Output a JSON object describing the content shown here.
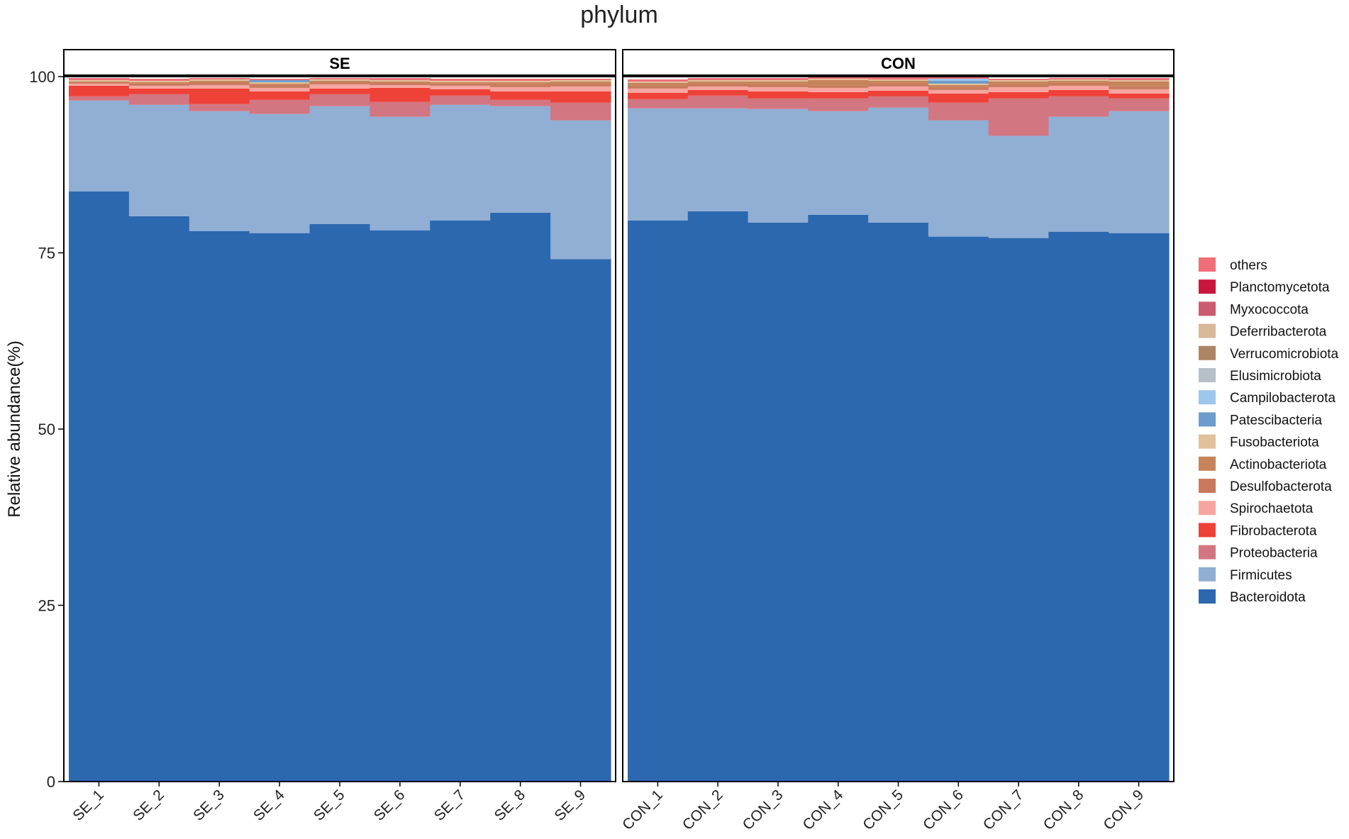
{
  "chart_data": {
    "type": "stacked-bar",
    "title": "phylum",
    "ylabel": "Relative abundance(%)",
    "xlabel": "",
    "ylim": [
      0,
      100
    ],
    "yticks": [
      0,
      25,
      50,
      75,
      100
    ],
    "grid": false,
    "legend_position": "right",
    "series_order_bottom_to_top": [
      "Bacteroidota",
      "Firmicutes",
      "Proteobacteria",
      "Fibrobacterota",
      "Spirochaetota",
      "Desulfobacterota",
      "Actinobacteriota",
      "Fusobacteriota",
      "Patescibacteria",
      "Campilobacterota",
      "Elusimicrobiota",
      "Verrucomicrobiota",
      "Deferribacterota",
      "Myxococcota",
      "Planctomycetota",
      "others"
    ],
    "legend": [
      {
        "name": "others",
        "color": "#EF6F78"
      },
      {
        "name": "Planctomycetota",
        "color": "#C8163F"
      },
      {
        "name": "Myxococcota",
        "color": "#CB5B70"
      },
      {
        "name": "Deferribacterota",
        "color": "#D7B899"
      },
      {
        "name": "Verrucomicrobiota",
        "color": "#AD8464"
      },
      {
        "name": "Elusimicrobiota",
        "color": "#B6C0C8"
      },
      {
        "name": "Campilobacterota",
        "color": "#9DC6EC"
      },
      {
        "name": "Patescibacteria",
        "color": "#6D9BCC"
      },
      {
        "name": "Fusobacteriota",
        "color": "#E2C09B"
      },
      {
        "name": "Actinobacteriota",
        "color": "#C6845A"
      },
      {
        "name": "Desulfobacterota",
        "color": "#C97A5E"
      },
      {
        "name": "Spirochaetota",
        "color": "#F7A5A0"
      },
      {
        "name": "Fibrobacterota",
        "color": "#EE4138"
      },
      {
        "name": "Proteobacteria",
        "color": "#D27682"
      },
      {
        "name": "Firmicutes",
        "color": "#91AED4"
      },
      {
        "name": "Bacteroidota",
        "color": "#2C68AF"
      }
    ],
    "panels": [
      {
        "label": "SE",
        "samples": [
          "SE_1",
          "SE_2",
          "SE_3",
          "SE_4",
          "SE_5",
          "SE_6",
          "SE_7",
          "SE_8",
          "SE_9"
        ],
        "stacks": [
          {
            "Bacteroidota": 83.7,
            "Firmicutes": 12.9,
            "Proteobacteria": 0.6,
            "Fibrobacterota": 1.5,
            "Spirochaetota": 0.3,
            "Desulfobacterota": 0.2,
            "Actinobacteriota": 0.1,
            "Fusobacteriota": 0.2,
            "others": 0.3
          },
          {
            "Bacteroidota": 80.2,
            "Firmicutes": 15.8,
            "Proteobacteria": 1.5,
            "Fibrobacterota": 0.8,
            "Spirochaetota": 0.4,
            "Desulfobacterota": 0.3,
            "Actinobacteriota": 0.2,
            "Fusobacteriota": 0.2,
            "others": 0.3
          },
          {
            "Bacteroidota": 78.1,
            "Firmicutes": 17.0,
            "Proteobacteria": 1.0,
            "Fibrobacterota": 2.2,
            "Spirochaetota": 0.5,
            "Desulfobacterota": 0.4,
            "Actinobacteriota": 0.2,
            "Fusobacteriota": 0.2,
            "others": 0.2
          },
          {
            "Bacteroidota": 77.8,
            "Firmicutes": 16.9,
            "Proteobacteria": 2.0,
            "Fibrobacterota": 1.2,
            "Spirochaetota": 0.5,
            "Desulfobacterota": 0.4,
            "Actinobacteriota": 0.2,
            "Fusobacteriota": 0.2,
            "Patescibacteria": 0.3,
            "others": 0.2
          },
          {
            "Bacteroidota": 79.1,
            "Firmicutes": 16.7,
            "Proteobacteria": 1.7,
            "Fibrobacterota": 0.8,
            "Spirochaetota": 0.6,
            "Desulfobacterota": 0.3,
            "Actinobacteriota": 0.2,
            "Fusobacteriota": 0.2,
            "others": 0.2
          },
          {
            "Bacteroidota": 78.2,
            "Firmicutes": 16.1,
            "Proteobacteria": 2.1,
            "Fibrobacterota": 2.0,
            "Spirochaetota": 0.4,
            "Desulfobacterota": 0.3,
            "Actinobacteriota": 0.2,
            "Fusobacteriota": 0.2,
            "others": 0.3
          },
          {
            "Bacteroidota": 79.6,
            "Firmicutes": 16.4,
            "Proteobacteria": 1.3,
            "Fibrobacterota": 0.9,
            "Spirochaetota": 0.5,
            "Desulfobacterota": 0.3,
            "Actinobacteriota": 0.2,
            "Fusobacteriota": 0.2,
            "others": 0.3
          },
          {
            "Bacteroidota": 80.7,
            "Firmicutes": 15.1,
            "Proteobacteria": 0.9,
            "Fibrobacterota": 1.2,
            "Spirochaetota": 0.6,
            "Desulfobacterota": 0.4,
            "Actinobacteriota": 0.3,
            "Fusobacteriota": 0.2,
            "others": 0.3
          },
          {
            "Bacteroidota": 74.1,
            "Firmicutes": 19.7,
            "Proteobacteria": 2.5,
            "Fibrobacterota": 1.6,
            "Spirochaetota": 0.7,
            "Desulfobacterota": 0.4,
            "Actinobacteriota": 0.3,
            "Fusobacteriota": 0.2,
            "others": 0.2
          }
        ]
      },
      {
        "label": "CON",
        "samples": [
          "CON_1",
          "CON_2",
          "CON_3",
          "CON_4",
          "CON_5",
          "CON_6",
          "CON_7",
          "CON_8",
          "CON_9"
        ],
        "stacks": [
          {
            "Bacteroidota": 79.6,
            "Firmicutes": 15.9,
            "Proteobacteria": 1.3,
            "Fibrobacterota": 0.9,
            "Spirochaetota": 0.6,
            "Desulfobacterota": 0.4,
            "Actinobacteriota": 0.4,
            "Fusobacteriota": 0.2,
            "others": 0.3
          },
          {
            "Bacteroidota": 80.9,
            "Firmicutes": 14.6,
            "Proteobacteria": 1.8,
            "Fibrobacterota": 0.8,
            "Spirochaetota": 0.5,
            "Desulfobacterota": 0.4,
            "Actinobacteriota": 0.3,
            "Fusobacteriota": 0.2,
            "others": 0.3
          },
          {
            "Bacteroidota": 79.3,
            "Firmicutes": 16.1,
            "Proteobacteria": 1.5,
            "Fibrobacterota": 1.0,
            "Spirochaetota": 0.6,
            "Desulfobacterota": 0.4,
            "Actinobacteriota": 0.4,
            "Fusobacteriota": 0.2,
            "others": 0.3
          },
          {
            "Bacteroidota": 80.4,
            "Firmicutes": 14.7,
            "Proteobacteria": 1.8,
            "Fibrobacterota": 0.9,
            "Spirochaetota": 0.6,
            "Desulfobacterota": 0.3,
            "Actinobacteriota": 0.8,
            "Fusobacteriota": 0.2,
            "others": 0.2
          },
          {
            "Bacteroidota": 79.3,
            "Firmicutes": 16.3,
            "Proteobacteria": 1.6,
            "Fibrobacterota": 0.8,
            "Spirochaetota": 0.6,
            "Desulfobacterota": 0.4,
            "Actinobacteriota": 0.4,
            "Fusobacteriota": 0.2,
            "others": 0.3
          },
          {
            "Bacteroidota": 77.3,
            "Firmicutes": 16.5,
            "Proteobacteria": 2.5,
            "Fibrobacterota": 1.3,
            "Spirochaetota": 0.5,
            "Desulfobacterota": 0.4,
            "Actinobacteriota": 0.3,
            "Fusobacteriota": 0.2,
            "Patescibacteria": 0.4,
            "Campilobacterota": 0.3,
            "others": 0.2
          },
          {
            "Bacteroidota": 77.1,
            "Firmicutes": 14.5,
            "Proteobacteria": 5.3,
            "Fibrobacterota": 0.9,
            "Spirochaetota": 0.7,
            "Desulfobacterota": 0.4,
            "Actinobacteriota": 0.4,
            "Fusobacteriota": 0.2,
            "others": 0.2
          },
          {
            "Bacteroidota": 78.0,
            "Firmicutes": 16.3,
            "Proteobacteria": 2.9,
            "Fibrobacterota": 0.9,
            "Spirochaetota": 0.6,
            "Desulfobacterota": 0.4,
            "Actinobacteriota": 0.3,
            "Fusobacteriota": 0.2,
            "others": 0.2
          },
          {
            "Bacteroidota": 77.8,
            "Firmicutes": 17.3,
            "Proteobacteria": 1.8,
            "Fibrobacterota": 0.7,
            "Spirochaetota": 0.6,
            "Desulfobacterota": 0.4,
            "Actinobacteriota": 0.7,
            "Fusobacteriota": 0.2,
            "others": 0.3
          }
        ]
      }
    ]
  }
}
